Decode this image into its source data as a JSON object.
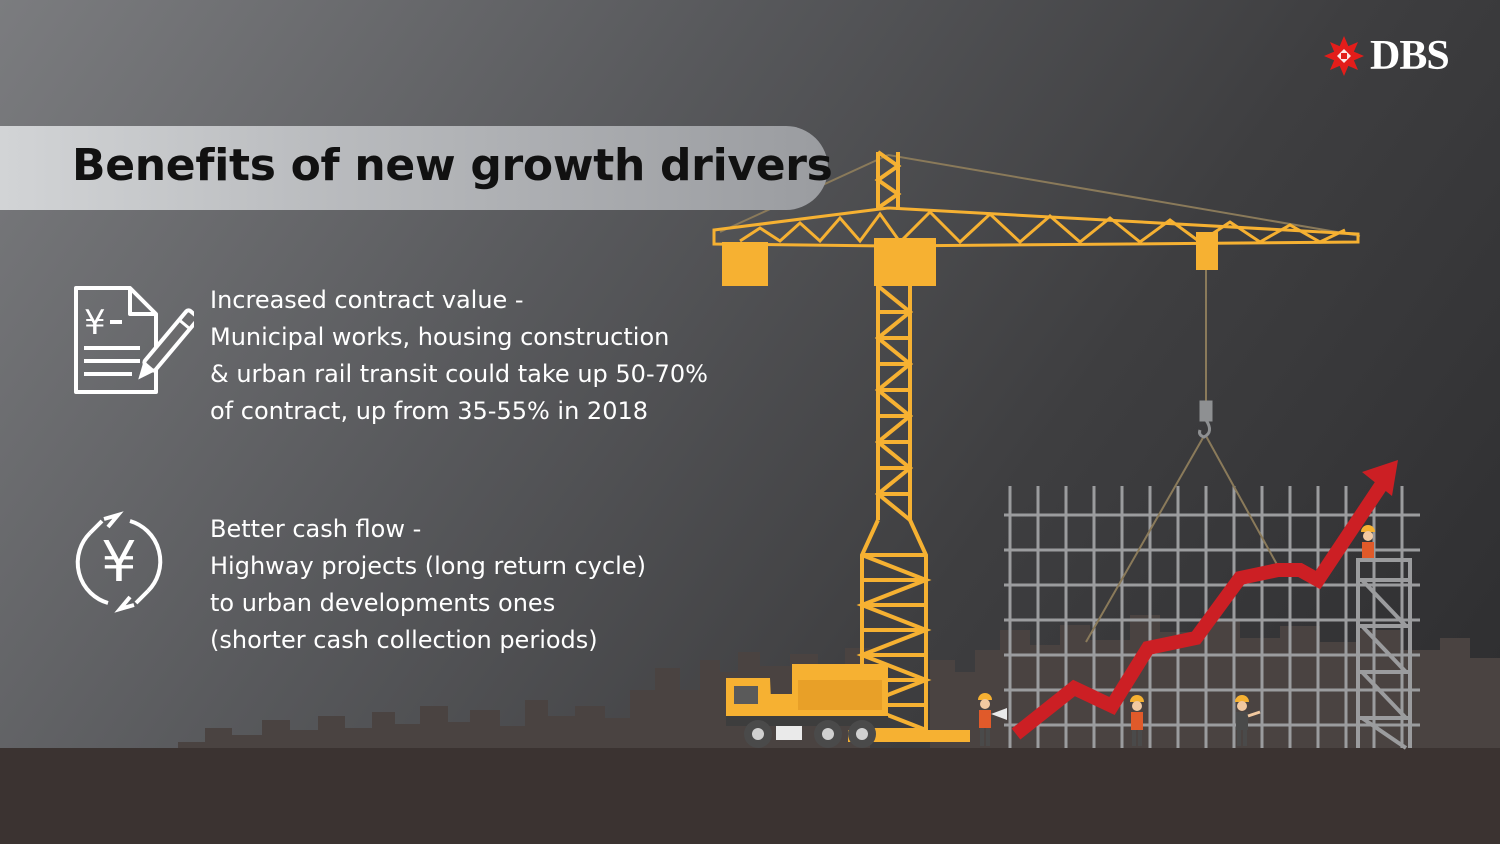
{
  "title": "Benefits of new growth drivers",
  "brand": {
    "name": "DBS",
    "logo_color": "#e31d1a"
  },
  "colors": {
    "crane": "#f6b132",
    "truck": "#f6b132",
    "ground": "#3b3331",
    "skyline": "#4a4341",
    "scaffold": "#9b9c9e",
    "arrow": "#cc1f24"
  },
  "benefits": [
    {
      "icon": "yuen-contract-pen-icon",
      "heading": "Increased contract value -",
      "lines": [
        "Municipal works, housing construction",
        "& urban rail transit could take up 50-70%",
        "of contract, up from 35-55% in 2018"
      ]
    },
    {
      "icon": "yuan-cycle-icon",
      "heading": "Better cash flow -",
      "lines": [
        "Highway projects (long return cycle)",
        "to urban developments ones",
        "(shorter cash collection periods)"
      ]
    }
  ]
}
